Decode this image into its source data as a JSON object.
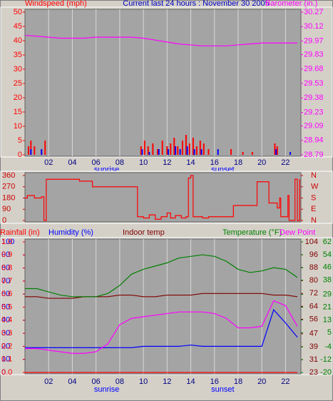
{
  "chart_data": [
    {
      "type": "bar",
      "title": "Current last 24 hours : November 30 2005",
      "ylabel": "Windspeed (mph)",
      "y2label": "Barometer (in.)",
      "axis_colors": {
        "y": "#ff0000",
        "y2": "#ff00ff"
      },
      "xlim": [
        0,
        23.3
      ],
      "xticks": [
        {
          "value": 2,
          "label": "02"
        },
        {
          "value": 4,
          "label": "04"
        },
        {
          "value": 6,
          "label": "06"
        },
        {
          "value": 8,
          "label": "08"
        },
        10,
        12,
        14,
        16,
        18,
        20,
        22
      ],
      "ylim": [
        0,
        50
      ],
      "yticks": [
        0,
        5,
        10,
        15,
        20,
        25,
        30,
        35,
        40,
        45,
        50
      ],
      "y2lim": [
        28.79,
        30.27
      ],
      "y2ticks": [
        28.79,
        28.94,
        29.09,
        29.23,
        29.38,
        29.53,
        29.68,
        29.83,
        29.97,
        30.12,
        30.27
      ],
      "annotations": [
        {
          "text": "sunrise",
          "x": 6.9
        },
        {
          "text": "sunset",
          "x": 16.7
        }
      ],
      "series": [
        {
          "type": "bar",
          "axis": "y",
          "color": "#ff0000",
          "x": [
            0.3,
            0.5,
            0.8,
            1.4,
            1.7,
            9.8,
            10.1,
            10.4,
            10.8,
            11.2,
            11.6,
            12.0,
            12.3,
            12.6,
            12.9,
            13.3,
            13.6,
            13.9,
            14.2,
            14.5,
            14.8,
            15.1,
            15.5,
            17.4,
            18.4,
            19.2,
            21.1,
            21.3
          ],
          "values": [
            3,
            5,
            3,
            2,
            5,
            3,
            5,
            3,
            4,
            2,
            5,
            3,
            4,
            6,
            3,
            5,
            7,
            4,
            6,
            3,
            5,
            4,
            2,
            2,
            1,
            1,
            4,
            3
          ]
        },
        {
          "type": "bar",
          "axis": "y",
          "color": "#0000ff",
          "x": [
            0.5,
            1.4,
            9.9,
            10.5,
            11.3,
            12.1,
            12.7,
            13.1,
            13.7,
            14.3,
            14.9,
            16.3,
            21.2,
            22.4
          ],
          "values": [
            2,
            2,
            2,
            1,
            2,
            2,
            3,
            2,
            3,
            2,
            2,
            2,
            2,
            1
          ]
        },
        {
          "type": "line",
          "axis": "y2",
          "color": "#ff00ff",
          "x": [
            0,
            1,
            2,
            3,
            4,
            5,
            6,
            7,
            8,
            9,
            10,
            11,
            12,
            13,
            14,
            15,
            16,
            17,
            18,
            19,
            20,
            21,
            22,
            23
          ],
          "values": [
            30.03,
            30.02,
            30.01,
            30.0,
            30.0,
            30.0,
            30.01,
            30.01,
            30.01,
            30.01,
            30.0,
            29.98,
            29.96,
            29.94,
            29.93,
            29.92,
            29.92,
            29.92,
            29.93,
            29.94,
            29.95,
            29.95,
            29.95,
            29.95
          ]
        }
      ]
    },
    {
      "type": "line",
      "step": true,
      "axis_colors": {
        "y": "#cc0000",
        "y2": "#cc0000"
      },
      "xlim": [
        0,
        23.3
      ],
      "ylim": [
        0,
        360
      ],
      "yticks": [
        0,
        90,
        180,
        270,
        360
      ],
      "y2lim": [
        0,
        360
      ],
      "y2ticks": [
        {
          "value": 0,
          "label": "N"
        },
        {
          "value": 90,
          "label": "E"
        },
        {
          "value": 180,
          "label": "S"
        },
        {
          "value": 270,
          "label": "W"
        },
        {
          "value": 360,
          "label": "N"
        }
      ],
      "series": [
        {
          "type": "line",
          "axis": "y",
          "color": "#ff0000",
          "x": [
            0,
            0.2,
            0.8,
            1.4,
            1.6,
            1.8,
            4.5,
            4.6,
            5.6,
            5.7,
            9.4,
            9.5,
            10,
            10.5,
            11,
            11.5,
            12,
            12.3,
            12.7,
            13.2,
            13.6,
            13.8,
            14,
            14.2,
            14.6,
            15,
            15.5,
            17.5,
            17.6,
            19.5,
            19.6,
            20.5,
            20.6,
            21.2,
            21.3,
            21.5,
            21.6,
            22.2,
            22.3,
            22.8,
            23,
            23.2
          ],
          "values": [
            180,
            200,
            180,
            190,
            0,
            330,
            330,
            315,
            315,
            270,
            270,
            30,
            20,
            45,
            10,
            30,
            60,
            20,
            40,
            20,
            30,
            340,
            360,
            30,
            30,
            20,
            30,
            30,
            120,
            120,
            310,
            310,
            140,
            140,
            100,
            180,
            30,
            200,
            0,
            330,
            0,
            330
          ]
        }
      ]
    },
    {
      "type": "line",
      "axis_colors": {
        "y": "#0000ff",
        "y2": "#800000",
        "y3": "#ff0000",
        "y4": "#008000"
      },
      "xlim": [
        0,
        23.3
      ],
      "xticks": [
        {
          "value": 2,
          "label": "02"
        },
        {
          "value": 4,
          "label": "04"
        },
        {
          "value": 6,
          "label": "06"
        },
        {
          "value": 8,
          "label": "08"
        },
        10,
        12,
        14,
        16,
        18,
        20,
        22
      ],
      "ylim": [
        0,
        100
      ],
      "yticks": [
        0,
        10,
        20,
        30,
        40,
        50,
        60,
        70,
        80,
        90,
        100
      ],
      "y2lim": [
        23,
        104
      ],
      "y2ticks": [
        23,
        31,
        39,
        47,
        56,
        64,
        72,
        80,
        88,
        96,
        104
      ],
      "y3lim": [
        0,
        1
      ],
      "y3ticks": [
        {
          "value": 0,
          "label": "0.0"
        },
        0.1,
        0.2,
        0.3,
        0.4,
        0.5,
        0.6,
        0.7,
        0.8,
        0.9,
        {
          "value": 1,
          "label": "1.0"
        }
      ],
      "y4lim": [
        -20,
        62
      ],
      "y4ticks": [
        -20,
        -12,
        -4,
        5,
        13,
        21,
        29,
        38,
        46,
        54,
        62
      ],
      "annotations": [
        {
          "text": "sunrise",
          "x": 6.9
        },
        {
          "text": "sunset",
          "x": 16.7
        }
      ],
      "series": [
        {
          "name": "Rainfall (in)",
          "axis": "y3",
          "color": "#ff0000",
          "x": [
            0,
            1,
            2,
            3,
            4,
            5,
            6,
            7,
            8,
            9,
            10,
            11,
            12,
            13,
            14,
            15,
            16,
            17,
            18,
            19,
            20,
            21,
            22,
            23
          ],
          "values": [
            0,
            0,
            0,
            0,
            0,
            0,
            0,
            0,
            0,
            0,
            0,
            0,
            0,
            0,
            0,
            0,
            0,
            0,
            0,
            0,
            0,
            0,
            0,
            0
          ]
        },
        {
          "name": "Humidity (%)",
          "axis": "y",
          "color": "#0000ff",
          "x": [
            0,
            1,
            2,
            3,
            4,
            5,
            6,
            7,
            8,
            9,
            10,
            11,
            12,
            13,
            14,
            15,
            16,
            17,
            18,
            19,
            20,
            21,
            22,
            23
          ],
          "values": [
            19,
            19,
            19,
            19,
            19,
            19,
            19,
            19,
            19,
            19,
            20,
            20,
            20,
            20,
            21,
            20,
            20,
            20,
            20,
            20,
            20,
            48,
            38,
            27
          ]
        },
        {
          "name": "Indoor temp",
          "axis": "y2",
          "color": "#800000",
          "x": [
            0,
            1,
            2,
            3,
            4,
            5,
            6,
            7,
            8,
            9,
            10,
            11,
            12,
            13,
            14,
            15,
            16,
            17,
            18,
            19,
            20,
            21,
            22,
            23
          ],
          "values": [
            70,
            70,
            69,
            69,
            69,
            70,
            70,
            70,
            71,
            71,
            70,
            70,
            71,
            71,
            71,
            72,
            72,
            72,
            72,
            72,
            72,
            71,
            71,
            70
          ]
        },
        {
          "name": "Temperature (°F)",
          "axis": "y2",
          "color": "#008000",
          "x": [
            0,
            1,
            2,
            3,
            4,
            5,
            6,
            7,
            8,
            9,
            10,
            11,
            12,
            13,
            14,
            15,
            16,
            17,
            18,
            19,
            20,
            21,
            22,
            23
          ],
          "values": [
            75,
            75,
            73,
            71,
            70,
            70,
            70,
            72,
            77,
            84,
            87,
            89,
            91,
            94,
            95,
            96,
            95,
            92,
            87,
            85,
            86,
            88,
            87,
            82
          ]
        },
        {
          "name": "Dew Point",
          "axis": "y4",
          "color": "#ff00ff",
          "x": [
            0,
            1,
            2,
            3,
            4,
            5,
            6,
            7,
            8,
            9,
            10,
            11,
            12,
            13,
            14,
            15,
            16,
            17,
            18,
            19,
            20,
            21,
            22,
            23
          ],
          "values": [
            -5,
            -5,
            -6,
            -7,
            -8,
            -8,
            -7,
            -2,
            10,
            14,
            15,
            16,
            17,
            18,
            18,
            18,
            17,
            14,
            8,
            8,
            9,
            25,
            22,
            9
          ]
        }
      ]
    }
  ]
}
